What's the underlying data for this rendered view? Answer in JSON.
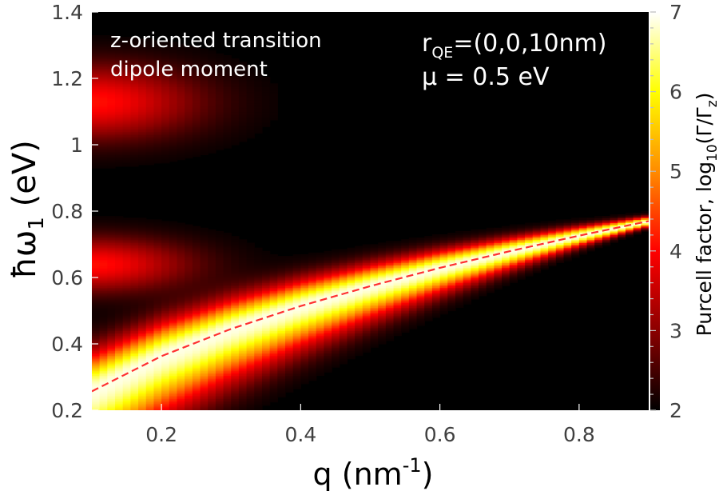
{
  "chart_data": {
    "type": "heatmap",
    "title": "",
    "xlabel": {
      "main": "q (nm",
      "sup": "-1",
      "end": ")"
    },
    "ylabel": {
      "main": "ħω",
      "sub": "1",
      "end": " (eV)"
    },
    "xlim": [
      0.1,
      0.9
    ],
    "ylim": [
      0.2,
      1.4
    ],
    "xticks": [
      "0.2",
      "0.4",
      "0.6",
      "0.8"
    ],
    "xtick_values": [
      0.2,
      0.4,
      0.6,
      0.8
    ],
    "yticks": [
      "0.2",
      "0.4",
      "0.6",
      "0.8",
      "1",
      "1.2",
      "1.4"
    ],
    "ytick_values": [
      0.2,
      0.4,
      0.6,
      0.8,
      1.0,
      1.2,
      1.4
    ],
    "colorbar": {
      "label": {
        "main": "Purcell factor, log",
        "sub1": "10",
        "mid": "(Γ/Γ",
        "sub2": "z",
        "end": ")"
      },
      "range": [
        2,
        7
      ],
      "ticks": [
        "2",
        "3",
        "4",
        "5",
        "6",
        "7"
      ],
      "tick_values": [
        2,
        3,
        4,
        5,
        6,
        7
      ],
      "colors": [
        "#000000",
        "#8b0000",
        "#ff0000",
        "#ff8c00",
        "#ffff00",
        "#ffffff"
      ]
    },
    "dispersion_curve": {
      "style": "dashed",
      "color": "#ff3030",
      "x": [
        0.1,
        0.2,
        0.3,
        0.4,
        0.5,
        0.6,
        0.7,
        0.8,
        0.9
      ],
      "y": [
        0.257,
        0.363,
        0.445,
        0.514,
        0.574,
        0.629,
        0.679,
        0.726,
        0.77
      ]
    },
    "annotations": {
      "orientation_line1": "z-oriented transition",
      "orientation_line2": "dipole moment",
      "position_main": "r",
      "position_sub": "QE",
      "position_value": "=(0,0,10nm)",
      "mu": "μ = 0.5 eV"
    }
  }
}
